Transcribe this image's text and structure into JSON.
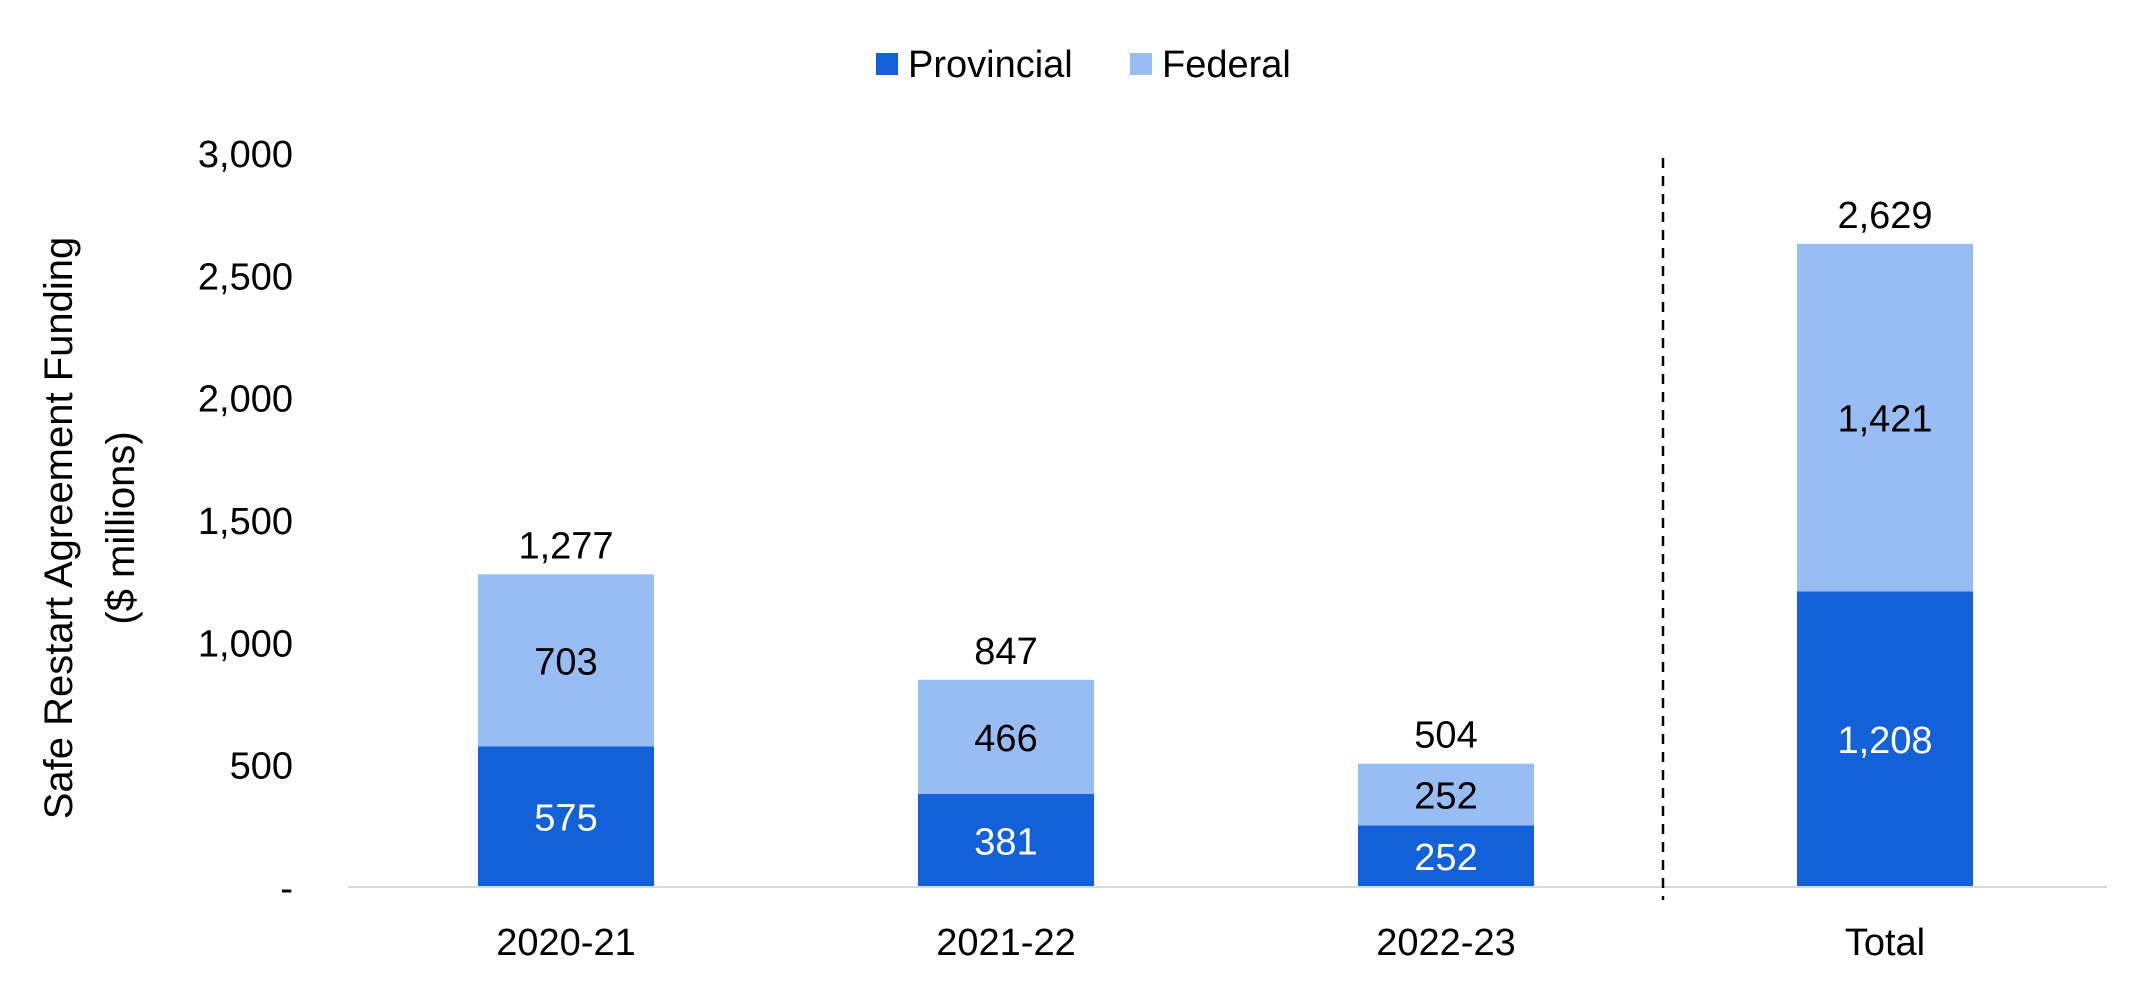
{
  "chart_data": {
    "type": "bar",
    "stacked": true,
    "categories": [
      "2020-21",
      "2021-22",
      "2022-23",
      "Total"
    ],
    "series": [
      {
        "name": "Provincial",
        "values": [
          575,
          381,
          252,
          1208
        ],
        "color": "#1261d8"
      },
      {
        "name": "Federal",
        "values": [
          703,
          466,
          252,
          1421
        ],
        "color": "#98bcf4"
      }
    ],
    "totals": [
      "1,277",
      "847",
      "504",
      "2,629"
    ],
    "value_labels": {
      "Provincial": [
        "575",
        "381",
        "252",
        "1,208"
      ],
      "Federal": [
        "703",
        "466",
        "252",
        "1,421"
      ]
    },
    "ylabel_lines": [
      "Safe Restart Agreement Funding",
      "($ millions)"
    ],
    "xlabel": "",
    "ylim": [
      0,
      3000
    ],
    "yticks": [
      0,
      500,
      1000,
      1500,
      2000,
      2500,
      3000
    ],
    "ytick_labels": [
      "-",
      "500",
      "1,000",
      "1,500",
      "2,000",
      "2,500",
      "3,000"
    ],
    "grid": false,
    "legend_position": "top-center",
    "separator_before_category": "Total",
    "axis_color": "#d9d9d9",
    "text_color": "#000000",
    "inner_label_colors": {
      "Provincial": "#ffffff",
      "Federal": "#000000"
    }
  }
}
